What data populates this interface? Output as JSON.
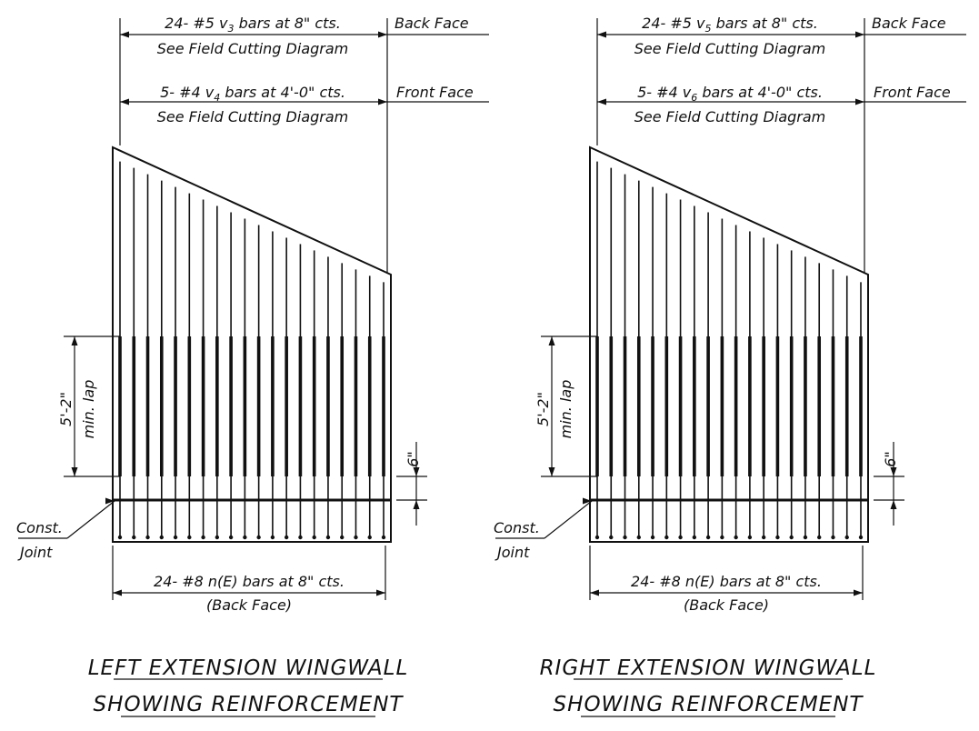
{
  "panels": [
    {
      "id": "left",
      "top_bar_label": "24- #5 v3 bars at 8\" cts.",
      "top_bar_label_main": "24- #5 v",
      "top_bar_label_sub": "3",
      "top_bar_label_tail": " bars at 8\" cts.",
      "top_face": "Back Face",
      "top_note": "See Field Cutting Diagram",
      "mid_bar_label_main": "5- #4 v",
      "mid_bar_label_sub": "4",
      "mid_bar_label_tail": " bars at 4'-0\" cts.",
      "mid_face": "Front Face",
      "mid_note": "See Field Cutting Diagram",
      "lap_length": "5'-2\"",
      "lap_note": "min. lap",
      "offset": "6\"",
      "joint_label_1": "Const.",
      "joint_label_2": "Joint",
      "bottom_bar_label": "24- #8 n(E) bars at 8\" cts.",
      "bottom_face": "(Back Face)",
      "title_1": "LEFT EXTENSION WINGWALL",
      "title_2": "SHOWING REINFORCEMENT"
    },
    {
      "id": "right",
      "top_bar_label_main": "24- #5 v",
      "top_bar_label_sub": "5",
      "top_bar_label_tail": " bars at 8\" cts.",
      "top_face": "Back Face",
      "top_note": "See Field Cutting Diagram",
      "mid_bar_label_main": "5- #4 v",
      "mid_bar_label_sub": "6",
      "mid_bar_label_tail": " bars at 4'-0\" cts.",
      "mid_face": "Front Face",
      "mid_note": "See Field Cutting Diagram",
      "lap_length": "5'-2\"",
      "lap_note": "min. lap",
      "offset": "6\"",
      "joint_label_1": "Const.",
      "joint_label_2": "Joint",
      "bottom_bar_label": "24- #8 n(E) bars at 8\" cts.",
      "bottom_face": "(Back Face)",
      "title_1": "RIGHT EXTENSION WINGWALL",
      "title_2": "SHOWING REINFORCEMENT"
    }
  ]
}
